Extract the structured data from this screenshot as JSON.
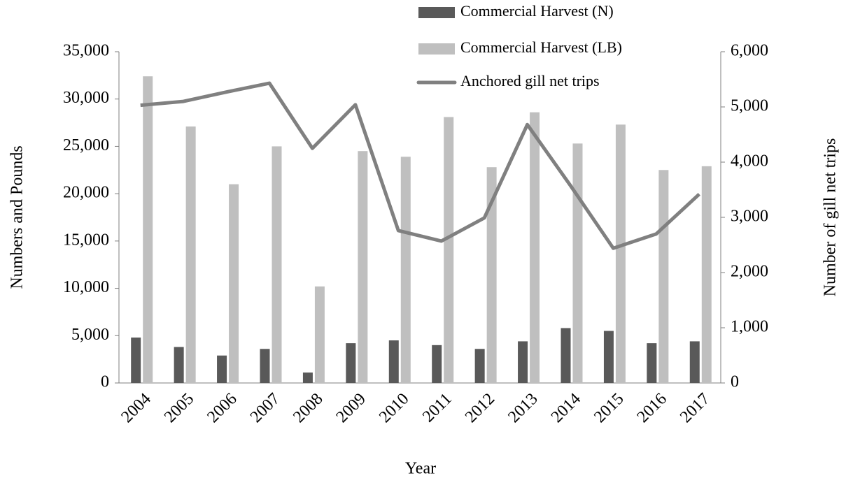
{
  "chart_data": {
    "type": "bar_line",
    "xlabel": "Year",
    "ylabel": "Numbers and Pounds",
    "y2label": "Number of gill net trips",
    "categories": [
      "2004",
      "2005",
      "2006",
      "2007",
      "2008",
      "2009",
      "2010",
      "2011",
      "2012",
      "2013",
      "2014",
      "2015",
      "2016",
      "2017"
    ],
    "series": [
      {
        "name": "Commercial Harvest (N)",
        "type": "bar",
        "color": "#595959",
        "values": [
          4800,
          3800,
          2900,
          3600,
          1100,
          4200,
          4500,
          4000,
          3600,
          4400,
          5800,
          5500,
          4200,
          4400
        ]
      },
      {
        "name": "Commercial Harvest (LB)",
        "type": "bar",
        "color": "#bfbfbf",
        "values": [
          32400,
          27100,
          21000,
          25000,
          10200,
          24500,
          23900,
          28100,
          22800,
          28600,
          25300,
          27300,
          22500,
          22900
        ]
      },
      {
        "name": "Anchored gill net trips",
        "type": "line",
        "axis": "y2",
        "color": "#808080",
        "values": [
          5030,
          5100,
          5270,
          5430,
          4250,
          5040,
          2760,
          2570,
          2990,
          4680,
          3580,
          2440,
          2700,
          3420
        ]
      }
    ],
    "ylim": [
      0,
      35000
    ],
    "yticks": [
      0,
      {
        "value": 5000,
        "label": "5,000"
      },
      {
        "value": 10000,
        "label": "10,000"
      },
      {
        "value": 15000,
        "label": "15,000"
      },
      {
        "value": 20000,
        "label": "20,000"
      },
      {
        "value": 25000,
        "label": "25,000"
      },
      {
        "value": 30000,
        "label": "30,000"
      },
      {
        "value": 35000,
        "label": "35,000"
      }
    ],
    "y2lim": [
      0,
      6000
    ],
    "y2ticks": [
      0,
      {
        "value": 1000,
        "label": "1,000"
      },
      {
        "value": 2000,
        "label": "2,000"
      },
      {
        "value": 3000,
        "label": "3,000"
      },
      {
        "value": 4000,
        "label": "4,000"
      },
      {
        "value": 5000,
        "label": "5,000"
      },
      {
        "value": 6000,
        "label": "6,000"
      }
    ]
  }
}
